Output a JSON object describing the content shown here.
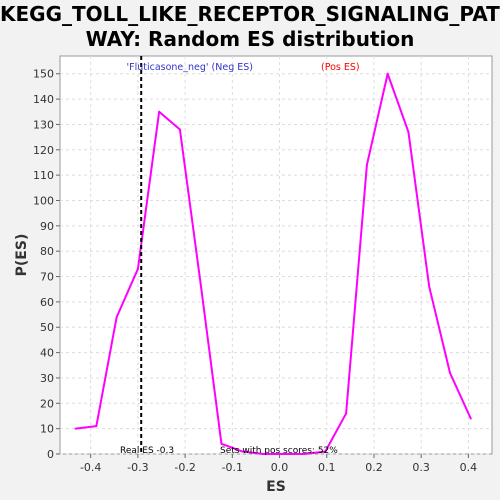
{
  "chart_data": {
    "type": "line",
    "title": "KEGG_TOLL_LIKE_RECEPTOR_SIGNALING_PATH\nWAY: Random ES distribution",
    "xlabel": "ES",
    "ylabel": "P(ES)",
    "xlim": [
      -0.465,
      0.45
    ],
    "ylim": [
      0,
      157
    ],
    "xticks": [
      -0.4,
      -0.3,
      -0.2,
      -0.1,
      0.0,
      0.1,
      0.2,
      0.3,
      0.4
    ],
    "xtick_labels": [
      "-0.4",
      "-0.3",
      "-0.2",
      "-0.1",
      "0.0",
      "0.1",
      "0.2",
      "0.3",
      "0.4"
    ],
    "yticks": [
      0,
      10,
      20,
      30,
      40,
      50,
      60,
      70,
      80,
      90,
      100,
      110,
      120,
      130,
      140,
      150
    ],
    "ytick_labels": [
      "0",
      "10",
      "20",
      "30",
      "40",
      "50",
      "60",
      "70",
      "80",
      "90",
      "100",
      "110",
      "120",
      "130",
      "140",
      "150"
    ],
    "grid": true,
    "series": [
      {
        "color": "#ff00ff",
        "x": [
          -0.432,
          -0.388,
          -0.345,
          -0.3,
          -0.255,
          -0.211,
          -0.167,
          -0.123,
          -0.079,
          -0.035,
          0.009,
          0.053,
          0.097,
          0.141,
          0.185,
          0.229,
          0.273,
          0.317,
          0.361,
          0.405
        ],
        "y": [
          10,
          11,
          54,
          73,
          135,
          128,
          67,
          4,
          1,
          0,
          0,
          0,
          1,
          16,
          114,
          150,
          127,
          66,
          32,
          14
        ]
      }
    ],
    "legend": {
      "position": "top-center",
      "neg_label": "'Fluticasone_neg' (Neg ES)",
      "neg_color": "#3333cc",
      "pos_label": "(Pos ES)",
      "pos_color": "#ff0000"
    },
    "real_es": {
      "value": -0.293,
      "label": "Real ES -0.3"
    },
    "pos_scores_label": "Sets with pos scores: 52%"
  }
}
